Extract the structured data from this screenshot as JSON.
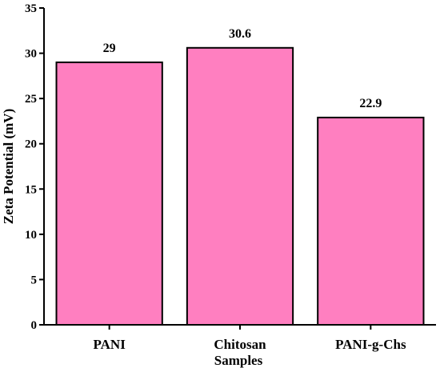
{
  "chart_data": {
    "type": "bar",
    "categories": [
      "PANI",
      "Chitosan",
      "PANI-g-Chs"
    ],
    "values": [
      29,
      30.6,
      22.9
    ],
    "data_labels": [
      "29",
      "30.6",
      "22.9"
    ],
    "xlabel": "Samples",
    "ylabel": "Zeta Potential (mV)",
    "ylim": [
      0,
      35
    ],
    "yticks": [
      0,
      5,
      10,
      15,
      20,
      25,
      30,
      35
    ],
    "bar_color": "#ff7fc0",
    "bar_edge_color": "#000000",
    "grid": false,
    "legend": "none"
  }
}
